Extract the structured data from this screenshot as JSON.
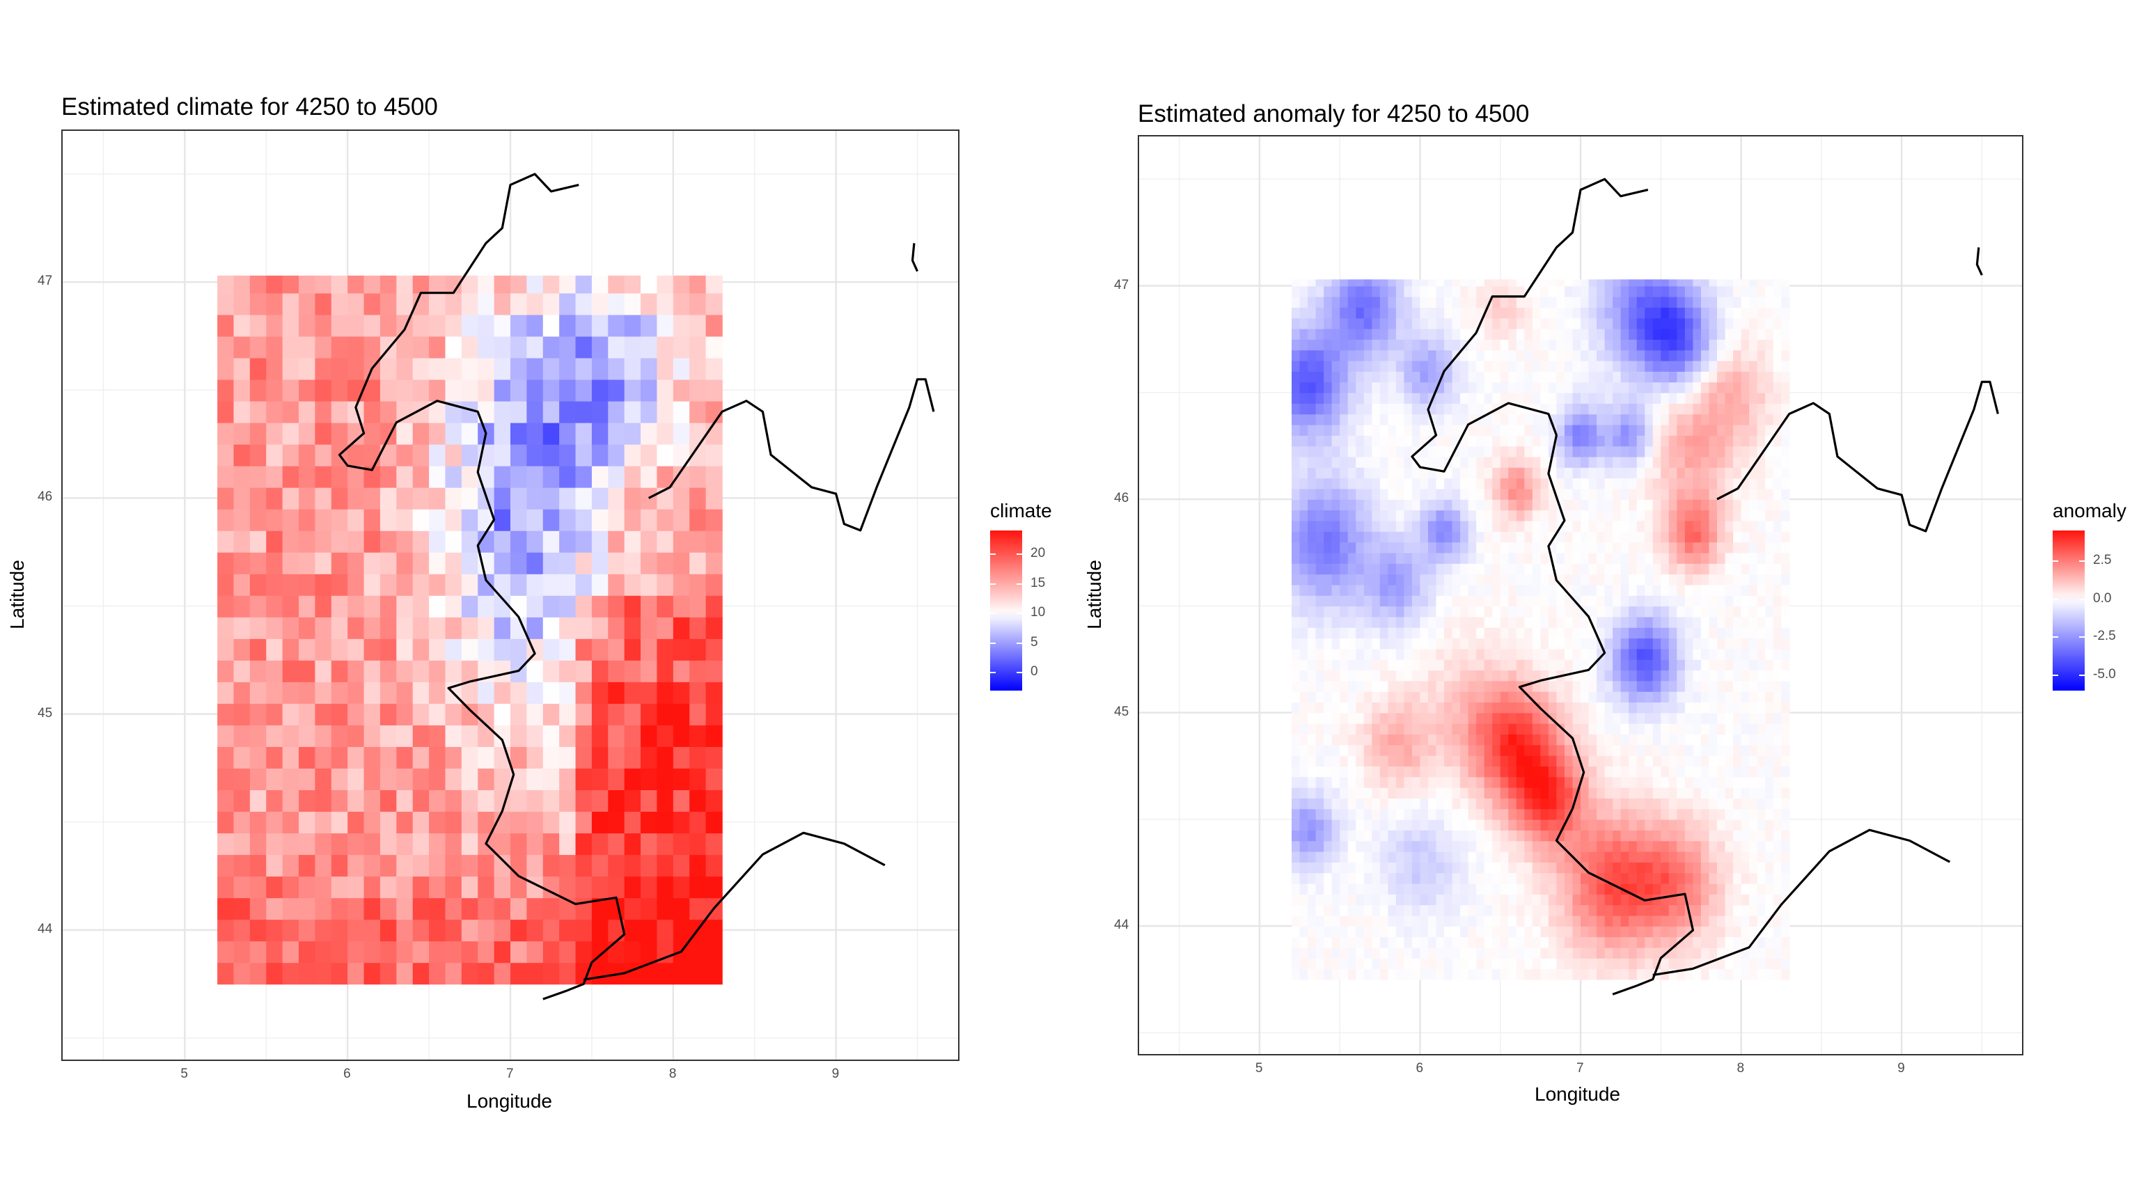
{
  "chart_data": [
    {
      "type": "heatmap",
      "title": "Estimated climate for 4250 to 4500",
      "xlabel": "Longitude",
      "ylabel": "Latitude",
      "xlim": [
        4.25,
        9.75
      ],
      "ylim": [
        43.4,
        47.7
      ],
      "x_ticks": [
        5,
        6,
        7,
        8,
        9
      ],
      "y_ticks": [
        44,
        45,
        46,
        47
      ],
      "grid": true,
      "raster_extent": {
        "lon": [
          5.2,
          8.3
        ],
        "lat": [
          43.75,
          47.03
        ]
      },
      "legend": {
        "title": "climate",
        "ticks": [
          0,
          5,
          10,
          15,
          20
        ],
        "range": [
          -3,
          24
        ],
        "midpoint": 10,
        "low_color": "#0000ff",
        "mid_color": "#ffffff",
        "high_color": "#ff0000",
        "placement": "right"
      }
    },
    {
      "type": "heatmap",
      "title": "Estimated anomaly for 4250 to 4500",
      "xlabel": "Longitude",
      "ylabel": "Latitude",
      "xlim": [
        4.25,
        9.75
      ],
      "ylim": [
        43.4,
        47.7
      ],
      "x_ticks": [
        5,
        6,
        7,
        8,
        9
      ],
      "y_ticks": [
        44,
        45,
        46,
        47
      ],
      "grid": true,
      "raster_extent": {
        "lon": [
          5.2,
          8.3
        ],
        "lat": [
          43.75,
          47.03
        ]
      },
      "legend": {
        "title": "anomaly",
        "ticks": [
          "-5.0",
          "-2.5",
          "0.0",
          "2.5"
        ],
        "tick_values": [
          -5,
          -2.5,
          0,
          2.5
        ],
        "range": [
          -6,
          4.5
        ],
        "midpoint": 0,
        "low_color": "#0000ff",
        "mid_color": "#ffffff",
        "high_color": "#ff0000",
        "placement": "right"
      }
    }
  ]
}
